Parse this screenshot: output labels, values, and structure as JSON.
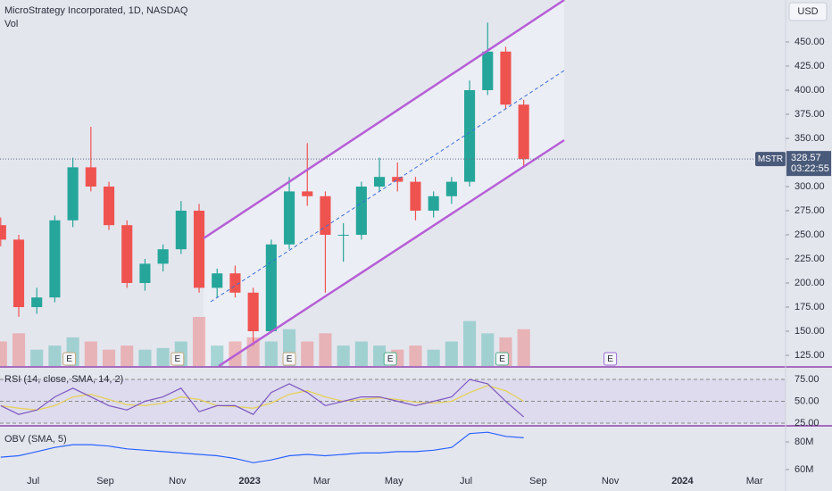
{
  "chart_data": {
    "type": "candlestick",
    "title": "MicroStrategy Incorporated, 1D, NASDAQ",
    "volume_label": "Vol",
    "currency": "USD",
    "symbol": "MSTR",
    "last_price": 328.57,
    "countdown": "03:22:55",
    "x": [
      5.1,
      5.6,
      6.1,
      6.6,
      7.1,
      7.6,
      8.1,
      8.6,
      9.1,
      9.6,
      10.1,
      10.6,
      11.1,
      11.6,
      12.1,
      12.6,
      13.1,
      13.6,
      14.1,
      14.6,
      15.1,
      15.6,
      16.1,
      16.6,
      17.1,
      17.6,
      18.1,
      18.6,
      19.1,
      19.6
    ],
    "open": [
      260,
      245,
      175,
      185,
      265,
      320,
      300,
      260,
      200,
      220,
      235,
      275,
      195,
      210,
      190,
      150,
      240,
      295,
      290,
      250,
      250,
      300,
      310,
      305,
      275,
      290,
      305,
      400,
      440,
      385
    ],
    "high": [
      268,
      250,
      195,
      270,
      330,
      362,
      305,
      265,
      225,
      240,
      285,
      282,
      215,
      218,
      195,
      245,
      310,
      345,
      295,
      262,
      305,
      330,
      325,
      310,
      295,
      310,
      410,
      470,
      445,
      390
    ],
    "low": [
      238,
      165,
      168,
      180,
      258,
      295,
      255,
      195,
      192,
      212,
      230,
      190,
      185,
      185,
      135,
      148,
      235,
      280,
      190,
      222,
      245,
      295,
      295,
      265,
      268,
      282,
      300,
      395,
      380,
      320
    ],
    "close": [
      245,
      175,
      185,
      265,
      320,
      300,
      260,
      200,
      220,
      235,
      275,
      195,
      210,
      190,
      150,
      240,
      295,
      290,
      250,
      250,
      300,
      310,
      305,
      275,
      290,
      305,
      400,
      440,
      385,
      328.57
    ],
    "volume": [
      30,
      40,
      20,
      25,
      35,
      30,
      20,
      25,
      20,
      22,
      30,
      60,
      25,
      30,
      35,
      30,
      45,
      30,
      40,
      25,
      30,
      25,
      20,
      25,
      20,
      30,
      55,
      40,
      35,
      45
    ],
    "up_color": "#26a69a",
    "down_color": "#ef5350",
    "xlim": [
      5.08,
      26.86
    ],
    "xticks": [
      {
        "value": 6,
        "label": "Jul"
      },
      {
        "value": 8,
        "label": "Sep"
      },
      {
        "value": 10,
        "label": "Nov"
      },
      {
        "value": 12,
        "label": "2023"
      },
      {
        "value": 14,
        "label": "Mar"
      },
      {
        "value": 16,
        "label": "May"
      },
      {
        "value": 18,
        "label": "Jul"
      },
      {
        "value": 20,
        "label": "Sep"
      },
      {
        "value": 22,
        "label": "Nov"
      },
      {
        "value": 24,
        "label": "2024"
      },
      {
        "value": 26,
        "label": "Mar"
      }
    ],
    "ylim": [
      113.9,
      493.5
    ],
    "yticks": [
      {
        "value": 450,
        "label": "450.00"
      },
      {
        "value": 425,
        "label": "425.00"
      },
      {
        "value": 400,
        "label": "400.00"
      },
      {
        "value": 375,
        "label": "375.00"
      },
      {
        "value": 350,
        "label": "350.00"
      },
      {
        "value": 300,
        "label": "300.00"
      },
      {
        "value": 275,
        "label": "275.00"
      },
      {
        "value": 250,
        "label": "250.00"
      },
      {
        "value": 225,
        "label": "225.00"
      },
      {
        "value": 200,
        "label": "200.00"
      },
      {
        "value": 175,
        "label": "175.00"
      },
      {
        "value": 150,
        "label": "150.00"
      },
      {
        "value": 125,
        "label": "125.00"
      }
    ],
    "earnings_marker": "E",
    "earnings_x": [
      7.0,
      10.0,
      13.1,
      15.9,
      19.0,
      22.0
    ],
    "rsi": {
      "title": "RSI (14, close, SMA, 14, 2)",
      "values": [
        45,
        35,
        40,
        55,
        65,
        55,
        45,
        40,
        50,
        55,
        65,
        38,
        45,
        45,
        35,
        60,
        70,
        60,
        45,
        50,
        55,
        55,
        50,
        45,
        50,
        55,
        75,
        70,
        50,
        32
      ],
      "ma_values": [
        45,
        42,
        40,
        45,
        55,
        58,
        52,
        46,
        45,
        48,
        55,
        52,
        45,
        44,
        42,
        48,
        58,
        62,
        55,
        50,
        52,
        54,
        52,
        49,
        48,
        50,
        60,
        68,
        62,
        50
      ],
      "color": "#7e57c2",
      "ma_color": "#e6d15a",
      "ylim": [
        21.9,
        88.3
      ],
      "yticks": [
        {
          "value": 75,
          "label": "75.00"
        },
        {
          "value": 50,
          "label": "50.00"
        },
        {
          "value": 25,
          "label": "25.00"
        }
      ]
    },
    "obv": {
      "title": "OBV (SMA, 5)",
      "values": [
        69,
        70,
        73,
        76,
        78,
        78,
        77,
        75,
        74,
        73,
        72,
        71,
        70,
        68,
        65,
        67,
        70,
        71,
        70,
        71,
        72,
        72,
        73,
        73,
        74,
        76,
        86,
        87,
        84,
        83
      ],
      "color": "#2962ff",
      "ylim": [
        51,
        89.7
      ],
      "yticks": [
        {
          "value": 80,
          "label": "80M"
        },
        {
          "value": 60,
          "label": "60M"
        }
      ]
    }
  }
}
